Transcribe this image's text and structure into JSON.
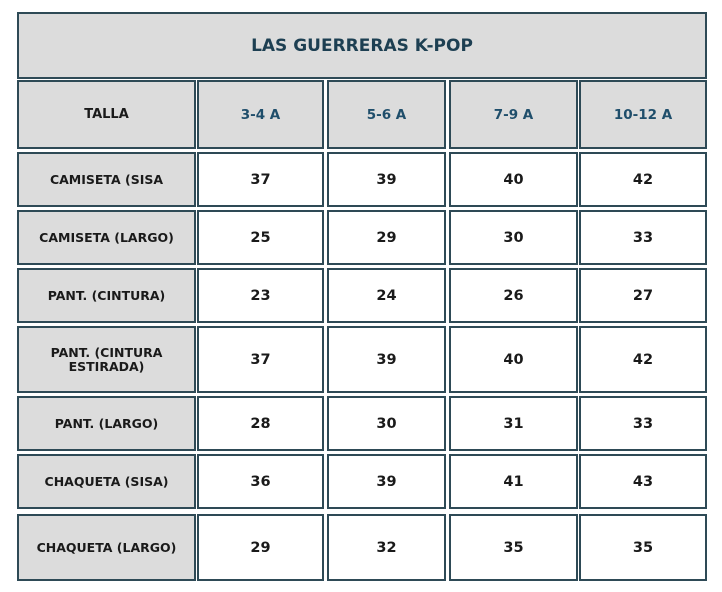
{
  "header": {
    "title": "LAS GUERRERAS K-POP"
  },
  "table": {
    "columns": [
      "TALLA",
      "3-4 A",
      "5-6 A",
      "7-9 A",
      "10-12 A"
    ],
    "rows": [
      [
        "CAMISETA (SISA",
        37,
        39,
        40,
        42
      ],
      [
        "CAMISETA (LARGO)",
        25,
        29,
        30,
        33
      ],
      [
        "PANT. (CINTURA)",
        23,
        24,
        26,
        27
      ],
      [
        "PANT. (CINTURA ESTIRADA)",
        37,
        39,
        40,
        42
      ],
      [
        "PANT. (LARGO)",
        28,
        30,
        31,
        33
      ],
      [
        "CHAQUETA (SISA)",
        36,
        39,
        41,
        43
      ],
      [
        "CHAQUETA (LARGO)",
        29,
        32,
        35,
        35
      ]
    ]
  }
}
